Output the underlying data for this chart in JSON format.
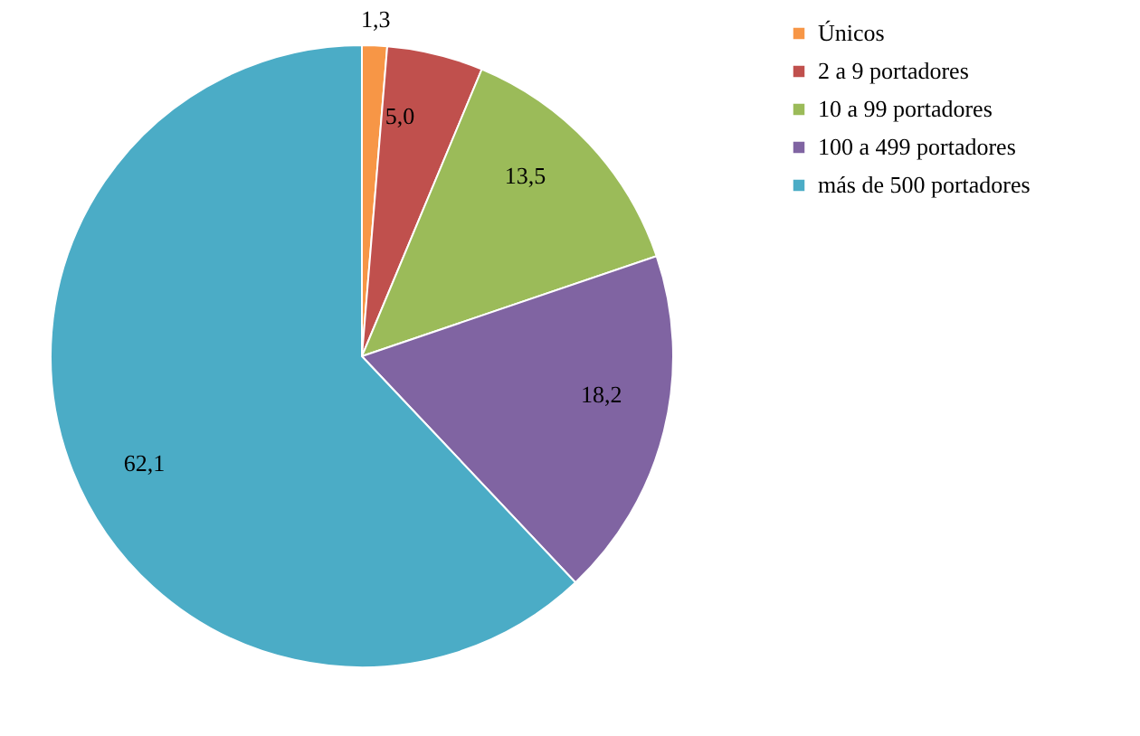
{
  "chart_data": {
    "type": "pie",
    "categories": [
      "Únicos",
      "2 a 9 portadores",
      "10 a 99 portadores",
      "100 a 499 portadores",
      "más de 500 portadores"
    ],
    "values": [
      1.3,
      5.0,
      13.5,
      18.2,
      62.1
    ],
    "value_labels": [
      "1,3",
      "5,0",
      "13,5",
      "18,2",
      "62,1"
    ],
    "colors": [
      "#f79646",
      "#c0504d",
      "#9bbb59",
      "#8064a2",
      "#4bacc6"
    ],
    "legend": "right"
  }
}
